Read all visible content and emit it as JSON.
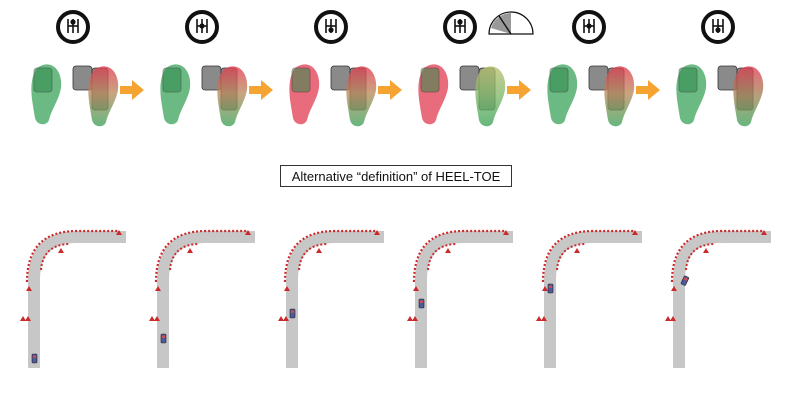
{
  "caption": "Alternative “definition” of HEEL-TOE",
  "colors": {
    "pedal_active": "#e23b50",
    "pedal_idle": "#3aa35a",
    "pedal_box": "#8a8a8a",
    "arrow": "#f5a431",
    "track": "#c7c7c7",
    "curb": "#cc2a2a",
    "car": "#4a5a9a"
  },
  "sequence": [
    {
      "step": 1,
      "shifter_icon": "gear-shifter-icon",
      "left_foot": "idle",
      "right_foot": "blend",
      "tachometer_shown": false,
      "car_progress": 0.0
    },
    {
      "step": 2,
      "shifter_icon": "gear-shifter-icon",
      "left_foot": "idle",
      "right_foot": "blend",
      "tachometer_shown": false,
      "car_progress": 0.2
    },
    {
      "step": 3,
      "shifter_icon": "gear-shifter-icon",
      "left_foot": "active",
      "right_foot": "blend",
      "tachometer_shown": false,
      "car_progress": 0.45
    },
    {
      "step": 4,
      "shifter_icon": "gear-shifter-icon",
      "left_foot": "active",
      "right_foot": "blend",
      "tachometer_shown": true,
      "car_progress": 0.55
    },
    {
      "step": 5,
      "shifter_icon": "gear-shifter-icon",
      "left_foot": "idle",
      "right_foot": "blend",
      "tachometer_shown": false,
      "car_progress": 0.7
    },
    {
      "step": 6,
      "shifter_icon": "gear-shifter-icon",
      "left_foot": "idle",
      "right_foot": "active",
      "tachometer_shown": false,
      "car_progress": 0.85
    }
  ]
}
